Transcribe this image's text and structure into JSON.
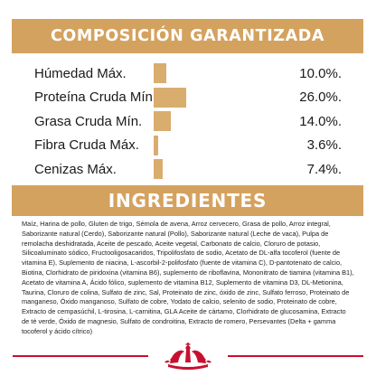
{
  "composition": {
    "title": "COMPOSICIÓN GARANTIZADA",
    "rows": [
      {
        "label": "Húmedad Máx.",
        "value": "10.0%.",
        "percent": 10.0
      },
      {
        "label": "Proteína Cruda Mín.",
        "value": "26.0%.",
        "percent": 26.0
      },
      {
        "label": "Grasa Cruda Mín.",
        "value": "14.0%.",
        "percent": 14.0
      },
      {
        "label": "Fibra Cruda Máx.",
        "value": "3.6%.",
        "percent": 3.6
      },
      {
        "label": "Cenizas Máx.",
        "value": "7.4%.",
        "percent": 7.4
      }
    ]
  },
  "ingredients": {
    "title": "INGREDIENTES",
    "text": "Maíz, Harina de pollo, Gluten de trigo, Sémola de avena, Arroz cervecero, Grasa de pollo, Arroz integral, Saborizante natural (Cerdo), Saborizante natural (Pollo), Saborizante natural (Leche de vaca), Pulpa de remolacha deshidratada, Aceite de pescado, Aceite vegetal, Carbonato de calcio, Cloruro de potasio, Silicoaluminato sódico, Fructooligosacaridos, Tripolifosfato de sodio, Acetato de DL-alfa tocoferol (fuente de vitamina E), Suplemento de niacina, L-ascorbil-2-polifosfato (fuente de vitamina C), D-pantotenato de calcio, Biotina, Clorhidrato de piridoxina (vitamina B6), suplemento de riboflavina, Mononitrato de tiamina (vitamina B1), Acetato de vitamina A, Ácido fólico, suplemento de vitamina B12, Suplemento de vitamina D3, DL-Metionina, Taurina, Cloruro de colina, Sulfato de zinc, Sal, Proteinato de zinc, óxido de zinc, Sulfato ferroso, Proteinato de manganeso, Óxido manganoso, Sulfato de cobre, Yodato de calcio, selenito de sodio, Proteinato de cobre, Extracto de cempasúchil, L-tirosina, L-carnitina, GLA Aceite de cártamo, Clorhidrato de glucosamina, Extracto de té verde, Óxido de magnesio, Sulfato de condroitina, Extracto de romero, Persevantes (Delta + gamma tocoferol y ácido cítrico)"
  },
  "footer": {
    "logo_icon": "royal-canin-crown-icon",
    "brand_color": "#c8102e"
  }
}
